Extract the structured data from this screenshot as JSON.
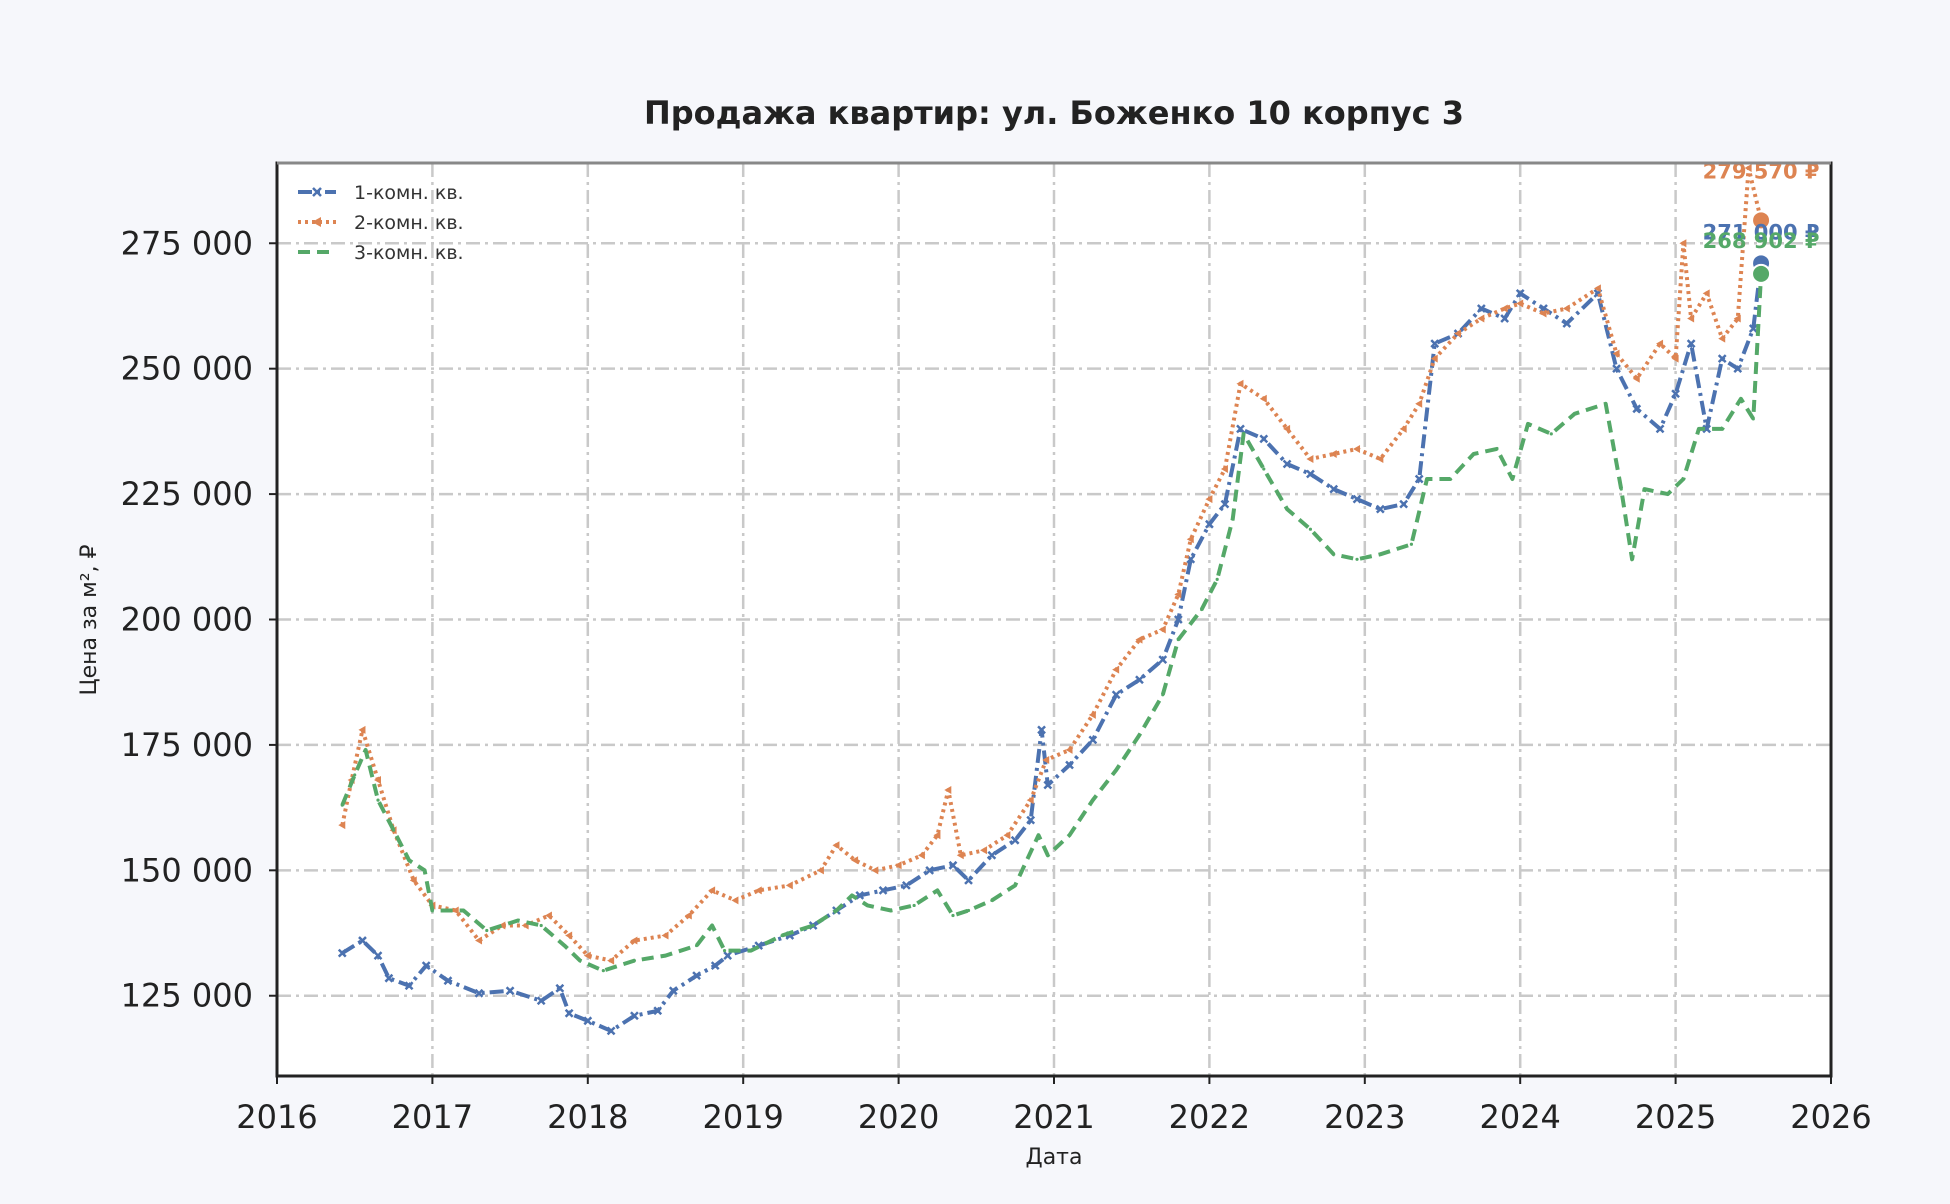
{
  "chart_data": {
    "type": "line",
    "title": "Продажа квартир: ул. Боженко 10 корпус 3",
    "xlabel": "Дата",
    "ylabel": "Цена за м², ₽",
    "xlim": [
      2016,
      2026
    ],
    "ylim": [
      109000,
      291000
    ],
    "x_ticks": [
      "2016",
      "2017",
      "2018",
      "2019",
      "2020",
      "2021",
      "2022",
      "2023",
      "2024",
      "2025",
      "2026"
    ],
    "y_ticks": [
      {
        "value": 125000,
        "label": "125 000"
      },
      {
        "value": 150000,
        "label": "150 000"
      },
      {
        "value": 175000,
        "label": "175 000"
      },
      {
        "value": 200000,
        "label": "200 000"
      },
      {
        "value": 225000,
        "label": "225 000"
      },
      {
        "value": 250000,
        "label": "250 000"
      },
      {
        "value": 275000,
        "label": "275 000"
      }
    ],
    "grid": true,
    "legend_position": "top-left",
    "series": [
      {
        "name": "1-комн. кв.",
        "color": "#4c72b0",
        "dash": "dash-dot",
        "marker": "x",
        "points": [
          [
            2016.42,
            133500
          ],
          [
            2016.55,
            136000
          ],
          [
            2016.65,
            133000
          ],
          [
            2016.72,
            128500
          ],
          [
            2016.85,
            127000
          ],
          [
            2016.96,
            131000
          ],
          [
            2017.1,
            128000
          ],
          [
            2017.3,
            125500
          ],
          [
            2017.5,
            126000
          ],
          [
            2017.7,
            124000
          ],
          [
            2017.82,
            126500
          ],
          [
            2017.88,
            121500
          ],
          [
            2018.0,
            120000
          ],
          [
            2018.15,
            118000
          ],
          [
            2018.3,
            121000
          ],
          [
            2018.45,
            122000
          ],
          [
            2018.55,
            126000
          ],
          [
            2018.7,
            129000
          ],
          [
            2018.82,
            131000
          ],
          [
            2018.9,
            133000
          ],
          [
            2019.1,
            135000
          ],
          [
            2019.3,
            137000
          ],
          [
            2019.45,
            139000
          ],
          [
            2019.6,
            142000
          ],
          [
            2019.75,
            145000
          ],
          [
            2019.9,
            146000
          ],
          [
            2020.05,
            147000
          ],
          [
            2020.2,
            150000
          ],
          [
            2020.35,
            151000
          ],
          [
            2020.45,
            148000
          ],
          [
            2020.6,
            153000
          ],
          [
            2020.75,
            156000
          ],
          [
            2020.85,
            160000
          ],
          [
            2020.92,
            178000
          ],
          [
            2020.96,
            167000
          ],
          [
            2021.1,
            171000
          ],
          [
            2021.25,
            176000
          ],
          [
            2021.4,
            185000
          ],
          [
            2021.55,
            188000
          ],
          [
            2021.7,
            192000
          ],
          [
            2021.8,
            200000
          ],
          [
            2021.88,
            212000
          ],
          [
            2022.0,
            219000
          ],
          [
            2022.1,
            223000
          ],
          [
            2022.2,
            238000
          ],
          [
            2022.35,
            236000
          ],
          [
            2022.5,
            231000
          ],
          [
            2022.65,
            229000
          ],
          [
            2022.8,
            226000
          ],
          [
            2022.95,
            224000
          ],
          [
            2023.1,
            222000
          ],
          [
            2023.25,
            223000
          ],
          [
            2023.35,
            228000
          ],
          [
            2023.45,
            255000
          ],
          [
            2023.6,
            257000
          ],
          [
            2023.75,
            262000
          ],
          [
            2023.9,
            260000
          ],
          [
            2024.0,
            265000
          ],
          [
            2024.15,
            262000
          ],
          [
            2024.3,
            259000
          ],
          [
            2024.5,
            265000
          ],
          [
            2024.62,
            250000
          ],
          [
            2024.75,
            242000
          ],
          [
            2024.9,
            238000
          ],
          [
            2025.0,
            245000
          ],
          [
            2025.1,
            255000
          ],
          [
            2025.2,
            238000
          ],
          [
            2025.3,
            252000
          ],
          [
            2025.4,
            250000
          ],
          [
            2025.5,
            258000
          ],
          [
            2025.55,
            271000
          ]
        ]
      },
      {
        "name": "2-комн. кв.",
        "color": "#dd8452",
        "dash": "dotted",
        "marker": "triangle",
        "points": [
          [
            2016.42,
            159000
          ],
          [
            2016.48,
            168000
          ],
          [
            2016.55,
            178000
          ],
          [
            2016.65,
            168000
          ],
          [
            2016.75,
            158000
          ],
          [
            2016.88,
            148000
          ],
          [
            2017.0,
            143000
          ],
          [
            2017.15,
            142000
          ],
          [
            2017.3,
            136000
          ],
          [
            2017.45,
            139000
          ],
          [
            2017.6,
            139000
          ],
          [
            2017.75,
            141000
          ],
          [
            2017.88,
            137000
          ],
          [
            2018.0,
            133000
          ],
          [
            2018.15,
            132000
          ],
          [
            2018.3,
            136000
          ],
          [
            2018.5,
            137000
          ],
          [
            2018.65,
            141000
          ],
          [
            2018.8,
            146000
          ],
          [
            2018.95,
            144000
          ],
          [
            2019.1,
            146000
          ],
          [
            2019.3,
            147000
          ],
          [
            2019.5,
            150000
          ],
          [
            2019.6,
            155000
          ],
          [
            2019.72,
            152000
          ],
          [
            2019.85,
            150000
          ],
          [
            2020.0,
            151000
          ],
          [
            2020.15,
            153000
          ],
          [
            2020.25,
            157000
          ],
          [
            2020.32,
            166000
          ],
          [
            2020.4,
            153000
          ],
          [
            2020.55,
            154000
          ],
          [
            2020.7,
            157000
          ],
          [
            2020.85,
            164000
          ],
          [
            2020.95,
            172000
          ],
          [
            2021.1,
            174000
          ],
          [
            2021.25,
            181000
          ],
          [
            2021.4,
            190000
          ],
          [
            2021.55,
            196000
          ],
          [
            2021.7,
            198000
          ],
          [
            2021.8,
            205000
          ],
          [
            2021.88,
            216000
          ],
          [
            2022.0,
            224000
          ],
          [
            2022.1,
            230000
          ],
          [
            2022.2,
            247000
          ],
          [
            2022.35,
            244000
          ],
          [
            2022.5,
            238000
          ],
          [
            2022.65,
            232000
          ],
          [
            2022.8,
            233000
          ],
          [
            2022.95,
            234000
          ],
          [
            2023.1,
            232000
          ],
          [
            2023.25,
            238000
          ],
          [
            2023.35,
            243000
          ],
          [
            2023.45,
            252000
          ],
          [
            2023.6,
            257000
          ],
          [
            2023.75,
            260000
          ],
          [
            2023.9,
            262000
          ],
          [
            2024.0,
            263000
          ],
          [
            2024.15,
            261000
          ],
          [
            2024.3,
            262000
          ],
          [
            2024.5,
            266000
          ],
          [
            2024.62,
            253000
          ],
          [
            2024.75,
            248000
          ],
          [
            2024.9,
            255000
          ],
          [
            2025.0,
            252000
          ],
          [
            2025.05,
            275000
          ],
          [
            2025.1,
            260000
          ],
          [
            2025.2,
            265000
          ],
          [
            2025.3,
            256000
          ],
          [
            2025.4,
            260000
          ],
          [
            2025.47,
            290000
          ],
          [
            2025.55,
            279570
          ]
        ]
      },
      {
        "name": "3-комн. кв.",
        "color": "#55a868",
        "dash": "dashed",
        "marker": "none",
        "points": [
          [
            2016.42,
            163000
          ],
          [
            2016.5,
            169000
          ],
          [
            2016.57,
            174000
          ],
          [
            2016.65,
            164000
          ],
          [
            2016.75,
            158000
          ],
          [
            2016.85,
            152000
          ],
          [
            2016.95,
            150000
          ],
          [
            2017.0,
            142000
          ],
          [
            2017.2,
            142000
          ],
          [
            2017.35,
            138000
          ],
          [
            2017.55,
            140000
          ],
          [
            2017.7,
            139000
          ],
          [
            2017.85,
            135000
          ],
          [
            2017.95,
            132000
          ],
          [
            2018.1,
            130000
          ],
          [
            2018.3,
            132000
          ],
          [
            2018.5,
            133000
          ],
          [
            2018.7,
            135000
          ],
          [
            2018.8,
            139000
          ],
          [
            2018.88,
            134000
          ],
          [
            2019.05,
            134000
          ],
          [
            2019.25,
            137000
          ],
          [
            2019.45,
            139000
          ],
          [
            2019.6,
            142000
          ],
          [
            2019.7,
            145000
          ],
          [
            2019.8,
            143000
          ],
          [
            2019.95,
            142000
          ],
          [
            2020.1,
            143000
          ],
          [
            2020.25,
            146000
          ],
          [
            2020.35,
            141000
          ],
          [
            2020.45,
            142000
          ],
          [
            2020.6,
            144000
          ],
          [
            2020.75,
            147000
          ],
          [
            2020.9,
            157000
          ],
          [
            2020.96,
            153000
          ],
          [
            2021.1,
            157000
          ],
          [
            2021.25,
            164000
          ],
          [
            2021.4,
            170000
          ],
          [
            2021.55,
            177000
          ],
          [
            2021.7,
            185000
          ],
          [
            2021.8,
            196000
          ],
          [
            2021.95,
            202000
          ],
          [
            2022.05,
            208000
          ],
          [
            2022.15,
            220000
          ],
          [
            2022.22,
            237000
          ],
          [
            2022.35,
            230000
          ],
          [
            2022.5,
            222000
          ],
          [
            2022.65,
            218000
          ],
          [
            2022.8,
            213000
          ],
          [
            2022.95,
            212000
          ],
          [
            2023.1,
            213000
          ],
          [
            2023.3,
            215000
          ],
          [
            2023.4,
            228000
          ],
          [
            2023.55,
            228000
          ],
          [
            2023.7,
            233000
          ],
          [
            2023.85,
            234000
          ],
          [
            2023.95,
            228000
          ],
          [
            2024.05,
            239000
          ],
          [
            2024.2,
            237000
          ],
          [
            2024.35,
            241000
          ],
          [
            2024.55,
            243000
          ],
          [
            2024.65,
            226000
          ],
          [
            2024.72,
            212000
          ],
          [
            2024.8,
            226000
          ],
          [
            2024.95,
            225000
          ],
          [
            2025.05,
            228000
          ],
          [
            2025.15,
            238000
          ],
          [
            2025.3,
            238000
          ],
          [
            2025.42,
            244000
          ],
          [
            2025.5,
            240000
          ],
          [
            2025.55,
            268902
          ]
        ]
      }
    ],
    "end_labels": [
      {
        "series": "2-комн. кв.",
        "x": 2025.55,
        "value": 279570,
        "label": "279 570 ₽",
        "color": "#dd8452"
      },
      {
        "series": "1-комн. кв.",
        "x": 2025.55,
        "value": 271000,
        "label": "271 000 ₽",
        "color": "#4c72b0"
      },
      {
        "series": "3-комн. кв.",
        "x": 2025.55,
        "value": 268902,
        "label": "268 902 ₽",
        "color": "#55a868"
      }
    ]
  }
}
